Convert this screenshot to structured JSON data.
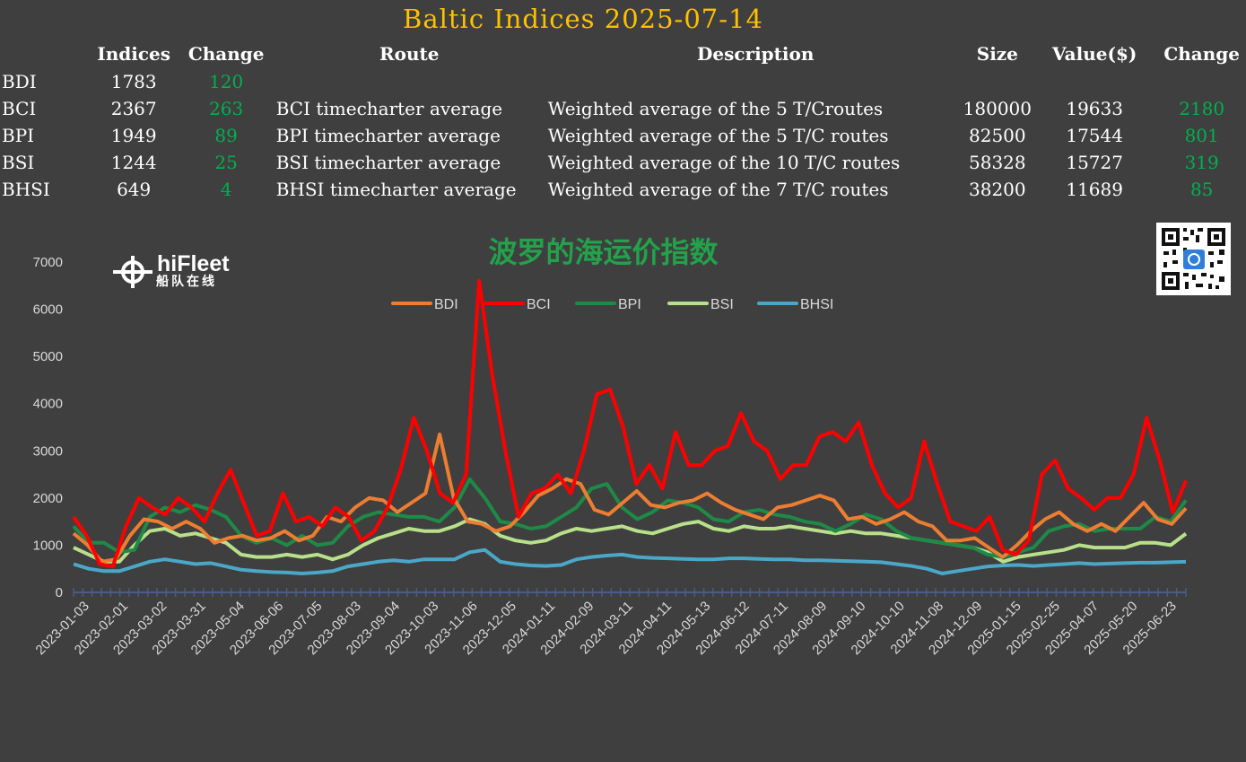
{
  "header": {
    "title": "Baltic Indices 2025-07-14"
  },
  "table": {
    "columns": [
      "Indices",
      "Change",
      "Route",
      "Description",
      "Size",
      "Value($)",
      "Change"
    ],
    "rows": [
      {
        "name": "BDI",
        "index": "1783",
        "change": "120",
        "route": "",
        "description": "",
        "size": "",
        "value": "",
        "change2": ""
      },
      {
        "name": "BCI",
        "index": "2367",
        "change": "263",
        "route": "BCI timecharter average",
        "description": "Weighted average of the 5 T/Croutes",
        "size": "180000",
        "value": "19633",
        "change2": "2180"
      },
      {
        "name": "BPI",
        "index": "1949",
        "change": "89",
        "route": "BPI timecharter average",
        "description": "Weighted average of the 5 T/C routes",
        "size": "82500",
        "value": "17544",
        "change2": "801"
      },
      {
        "name": "BSI",
        "index": "1244",
        "change": "25",
        "route": "BSI timecharter average",
        "description": "Weighted average of the 10 T/C routes",
        "size": "58328",
        "value": "15727",
        "change2": "319"
      },
      {
        "name": "BHSI",
        "index": "649",
        "change": "4",
        "route": "BHSI timecharter average",
        "description": "Weighted average of the 7 T/C routes",
        "size": "38200",
        "value": "11689",
        "change2": "85"
      }
    ]
  },
  "brand": {
    "logo_text": "hiFleet",
    "logo_sub": "船队在线",
    "logo_icon": "ship-wheel-icon",
    "qr_icon": "qr-code-icon"
  },
  "colors": {
    "BDI": "#ed7d31",
    "BCI": "#ff0000",
    "BPI": "#1e8a47",
    "BSI": "#b8e08a",
    "BHSI": "#4ba7c8",
    "accent": "#ffc000",
    "positive": "#00b050"
  },
  "chart_data": {
    "type": "line",
    "title": "波罗的海运价指数",
    "ylim": [
      0,
      7000
    ],
    "yticks": [
      0,
      1000,
      2000,
      3000,
      4000,
      5000,
      6000,
      7000
    ],
    "x_tick_labels": [
      "2023-01-03",
      "2023-02-01",
      "2023-03-02",
      "2023-03-31",
      "2023-05-04",
      "2023-06-06",
      "2023-07-05",
      "2023-08-03",
      "2023-09-04",
      "2023-10-03",
      "2023-11-06",
      "2023-12-05",
      "2024-01-11",
      "2024-02-09",
      "2024-03-11",
      "2024-04-11",
      "2024-05-13",
      "2024-06-12",
      "2024-07-11",
      "2024-08-09",
      "2024-09-10",
      "2024-10-10",
      "2024-11-08",
      "2024-12-09",
      "2025-01-15",
      "2025-02-25",
      "2025-04-07",
      "2025-05-20",
      "2025-06-23"
    ],
    "legend_placement": "top",
    "grid": false,
    "series": [
      {
        "name": "BDI",
        "values": [
          1250,
          1000,
          650,
          700,
          1200,
          1550,
          1500,
          1350,
          1500,
          1350,
          1050,
          1150,
          1200,
          1100,
          1150,
          1300,
          1100,
          1200,
          1600,
          1500,
          1800,
          2000,
          1950,
          1700,
          1900,
          2100,
          3350,
          2000,
          1500,
          1450,
          1300,
          1400,
          1700,
          2050,
          2200,
          2400,
          2300,
          1750,
          1650,
          1900,
          2150,
          1850,
          1800,
          1900,
          1950,
          2100,
          1900,
          1750,
          1650,
          1550,
          1800,
          1850,
          1950,
          2050,
          1950,
          1550,
          1600,
          1450,
          1550,
          1700,
          1500,
          1400,
          1100,
          1100,
          1150,
          950,
          750,
          1000,
          1300,
          1550,
          1700,
          1450,
          1300,
          1450,
          1300,
          1600,
          1900,
          1550,
          1450,
          1783
        ]
      },
      {
        "name": "BCI",
        "values": [
          1600,
          1200,
          600,
          550,
          1400,
          2000,
          1800,
          1650,
          2000,
          1800,
          1500,
          2100,
          2600,
          1900,
          1200,
          1300,
          2100,
          1500,
          1600,
          1400,
          1800,
          1600,
          1100,
          1300,
          1800,
          2600,
          3700,
          3000,
          2100,
          1900,
          2500,
          6600,
          4600,
          3000,
          1600,
          2100,
          2200,
          2500,
          2100,
          3000,
          4200,
          4300,
          3500,
          2300,
          2700,
          2200,
          3400,
          2700,
          2700,
          3000,
          3100,
          3800,
          3200,
          3000,
          2400,
          2700,
          2700,
          3300,
          3400,
          3200,
          3600,
          2700,
          2100,
          1800,
          2000,
          3200,
          2300,
          1500,
          1400,
          1300,
          1600,
          900,
          800,
          1100,
          2500,
          2800,
          2200,
          2000,
          1750,
          2000,
          2000,
          2500,
          3700,
          2800,
          1700,
          2367
        ]
      },
      {
        "name": "BPI",
        "values": [
          1400,
          1050,
          1050,
          850,
          900,
          1600,
          1800,
          1700,
          1850,
          1750,
          1600,
          1200,
          1050,
          1150,
          1000,
          1200,
          1000,
          1050,
          1400,
          1600,
          1700,
          1650,
          1600,
          1600,
          1500,
          1800,
          2400,
          2000,
          1500,
          1450,
          1350,
          1400,
          1600,
          1800,
          2200,
          2300,
          1800,
          1550,
          1700,
          1950,
          1900,
          1800,
          1550,
          1500,
          1700,
          1750,
          1650,
          1600,
          1500,
          1450,
          1300,
          1450,
          1650,
          1550,
          1300,
          1150,
          1100,
          1050,
          1000,
          950,
          800,
          750,
          850,
          950,
          1300,
          1400,
          1450,
          1300,
          1350,
          1350,
          1350,
          1600,
          1500,
          1949
        ]
      },
      {
        "name": "BSI",
        "values": [
          950,
          800,
          650,
          650,
          1000,
          1300,
          1350,
          1200,
          1250,
          1150,
          1050,
          800,
          750,
          750,
          800,
          750,
          800,
          700,
          800,
          1000,
          1150,
          1250,
          1350,
          1300,
          1300,
          1400,
          1550,
          1450,
          1200,
          1100,
          1050,
          1100,
          1250,
          1350,
          1300,
          1350,
          1400,
          1300,
          1250,
          1350,
          1450,
          1500,
          1350,
          1300,
          1400,
          1350,
          1350,
          1400,
          1350,
          1300,
          1250,
          1300,
          1250,
          1250,
          1200,
          1150,
          1100,
          1050,
          1000,
          950,
          850,
          650,
          750,
          800,
          850,
          900,
          1000,
          950,
          950,
          950,
          1050,
          1050,
          1000,
          1244
        ]
      },
      {
        "name": "BHSI",
        "values": [
          600,
          500,
          450,
          450,
          550,
          650,
          700,
          650,
          600,
          620,
          550,
          480,
          450,
          430,
          420,
          400,
          420,
          450,
          550,
          600,
          650,
          680,
          650,
          700,
          700,
          700,
          850,
          900,
          650,
          600,
          570,
          560,
          580,
          700,
          750,
          780,
          800,
          750,
          730,
          720,
          710,
          700,
          700,
          720,
          720,
          710,
          700,
          700,
          680,
          680,
          670,
          660,
          650,
          640,
          600,
          560,
          500,
          400,
          450,
          500,
          550,
          570,
          580,
          560,
          580,
          600,
          620,
          600,
          610,
          620,
          630,
          630,
          640,
          649
        ]
      }
    ]
  }
}
